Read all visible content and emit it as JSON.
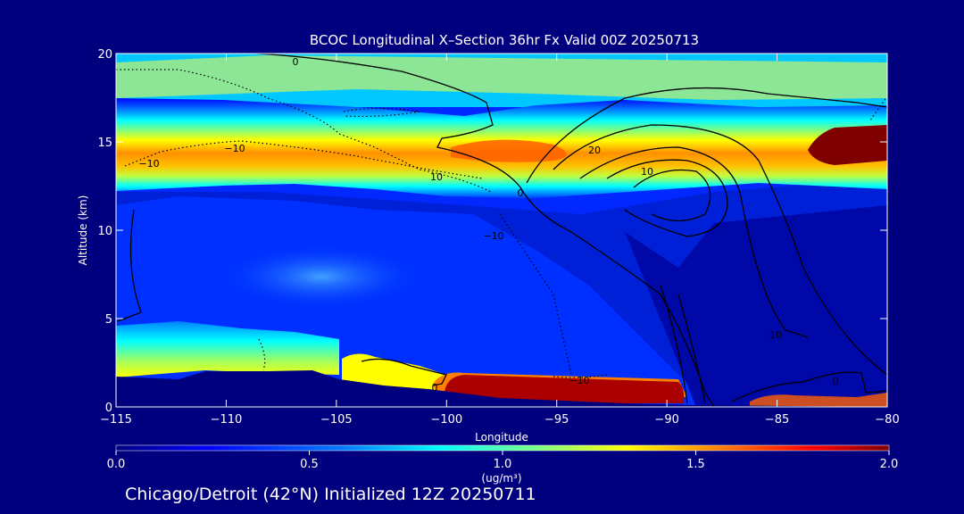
{
  "chart_data": {
    "type": "heatmap",
    "title": "BCOC Longitudinal X–Section 36hr  Fx Valid 00Z 20250713",
    "xlabel": "Longitude",
    "ylabel": "Altitude (km)",
    "xlim": [
      -115,
      -80
    ],
    "ylim": [
      0,
      20
    ],
    "x_ticks": [
      "−115",
      "−110",
      "−105",
      "−100",
      "−95",
      "−90",
      "−85",
      "−80"
    ],
    "x_tick_values": [
      -115,
      -110,
      -105,
      -100,
      -95,
      -90,
      -85,
      -80
    ],
    "y_ticks": [
      "0",
      "5",
      "10",
      "15",
      "20"
    ],
    "y_tick_values": [
      0,
      5,
      10,
      15,
      20
    ],
    "colorbar": {
      "label": "(ug/m³)",
      "range": [
        0.0,
        2.0
      ],
      "tick_labels": [
        "0.0",
        "0.5",
        "1.0",
        "1.5",
        "2.0"
      ],
      "tick_values": [
        0.0,
        0.5,
        1.0,
        1.5,
        2.0
      ],
      "colormap": [
        "#00007f",
        "#0000ff",
        "#0080ff",
        "#00ffff",
        "#80ff80",
        "#ffff00",
        "#ff8000",
        "#ff0000",
        "#7f0000"
      ]
    },
    "concentration_features": [
      {
        "region": "upper layer",
        "lon_range": [
          -115,
          -80
        ],
        "alt_range": [
          13,
          16
        ],
        "value": 1.4
      },
      {
        "region": "upper max east",
        "lon_range": [
          -83,
          -80
        ],
        "alt_range": [
          13.5,
          15.5
        ],
        "value": 2.0
      },
      {
        "region": "surface plume",
        "lon_range": [
          -101,
          -89
        ],
        "alt_range": [
          0,
          1.5
        ],
        "value": 2.0
      },
      {
        "region": "low west",
        "lon_range": [
          -115,
          -105
        ],
        "alt_range": [
          2,
          5
        ],
        "value": 0.9
      },
      {
        "region": "mid dome",
        "lon_range": [
          -111,
          -100
        ],
        "alt_range": [
          6,
          8
        ],
        "value": 0.55
      }
    ],
    "contour_labels": [
      "0",
      "−10",
      "−10",
      "−10",
      "10",
      "20",
      "0",
      "10",
      "0",
      "10",
      "−10",
      "0"
    ],
    "colors": {
      "background": "#00007f",
      "terrain": "#00007f",
      "contour": "#000000"
    }
  },
  "footer": "Chicago/Detroit (42°N) Initialized 12Z 20250711"
}
